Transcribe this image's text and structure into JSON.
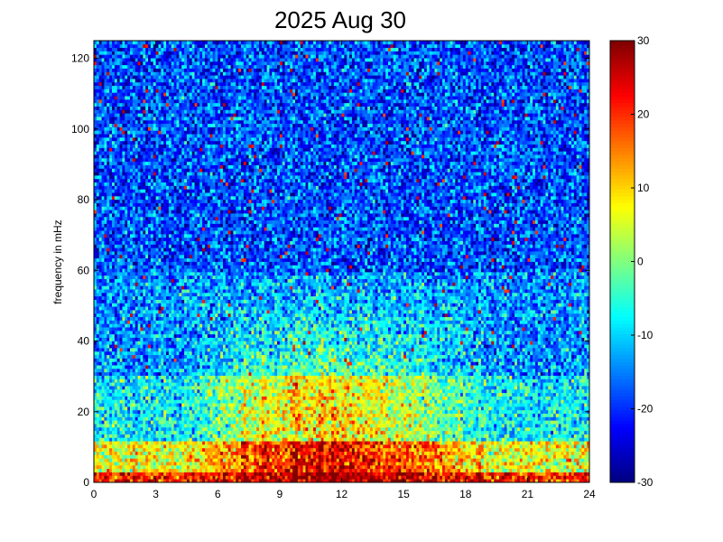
{
  "chart_data": {
    "type": "heatmap",
    "title": "2025 Aug 30",
    "xlabel": "",
    "ylabel": "frequency in mHz",
    "x_ticks": [
      "0",
      "3",
      "6",
      "9",
      "12",
      "15",
      "18",
      "21",
      "24"
    ],
    "y_ticks": [
      "0",
      "20",
      "40",
      "60",
      "80",
      "100",
      "120"
    ],
    "xlim": [
      0,
      24
    ],
    "ylim": [
      0,
      125
    ],
    "colorbar": {
      "colormap": "jet",
      "clim": [
        -30,
        30
      ],
      "ticks": [
        "30",
        "20",
        "10",
        "0",
        "-10",
        "-20",
        "-30"
      ]
    },
    "description_of_field": {
      "low_frequency_band": {
        "freq_range_mHz": [
          0,
          12
        ],
        "level": 22
      },
      "mid_band": {
        "freq_range_mHz": [
          12,
          30
        ],
        "level_daytime": 8,
        "level_night": -5
      },
      "high_band": {
        "freq_range_mHz": [
          60,
          125
        ],
        "level": -18
      },
      "daytime_hours": [
        4,
        19
      ],
      "vertical_streaks_hours": [
        7.3,
        8.2,
        9.8,
        11.0,
        11.6,
        17.7,
        18.7
      ]
    }
  }
}
